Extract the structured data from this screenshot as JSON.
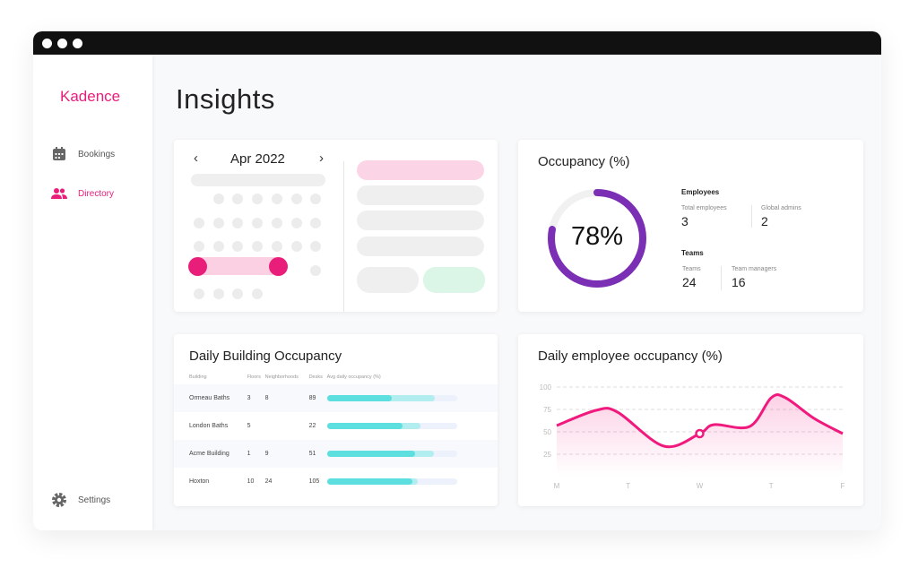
{
  "app": {
    "logo": "Kadence",
    "page_title": "Insights"
  },
  "sidebar": {
    "items": [
      {
        "label": "Bookings",
        "icon": "calendar-icon"
      },
      {
        "label": "Directory",
        "icon": "people-icon",
        "active": true
      },
      {
        "label": "Settings",
        "icon": "gear-icon"
      }
    ]
  },
  "calendar": {
    "month": "Apr 2022",
    "prev": "‹",
    "next": "›"
  },
  "occupancy": {
    "title": "Occupancy (%)",
    "value": 78,
    "value_label": "78%",
    "employees_heading": "Employees",
    "total_employees_label": "Total employees",
    "total_employees": "3",
    "global_admins_label": "Global admins",
    "global_admins": "2",
    "teams_heading": "Teams",
    "teams_label": "Teams",
    "teams": "24",
    "team_managers_label": "Team managers",
    "team_managers": "16"
  },
  "buildings": {
    "title": "Daily Building Occupancy",
    "columns": [
      "Building",
      "Floors",
      "Neighborhoods",
      "Desks",
      "Avg daily occupancy (%)"
    ],
    "rows": [
      {
        "name": "Ormeau Baths",
        "floors": "3",
        "neighborhoods": "8",
        "desks": "89",
        "occ": 50,
        "peak": 83
      },
      {
        "name": "London Baths",
        "floors": "5",
        "neighborhoods": "",
        "desks": "22",
        "occ": 58,
        "peak": 72
      },
      {
        "name": "Acme Building",
        "floors": "1",
        "neighborhoods": "9",
        "desks": "51",
        "occ": 68,
        "peak": 82
      },
      {
        "name": "Hoxton",
        "floors": "10",
        "neighborhoods": "24",
        "desks": "105",
        "occ": 66,
        "peak": 70
      }
    ]
  },
  "chart_data": {
    "type": "area",
    "title": "Daily employee occupancy (%)",
    "categories": [
      "M",
      "T",
      "W",
      "T",
      "F"
    ],
    "yticks": [
      "100",
      "75",
      "50",
      "25"
    ],
    "ylim": [
      0,
      100
    ],
    "grid": true,
    "x": [
      0,
      0.55,
      0.85,
      1.5,
      2,
      2.2,
      2.7,
      3,
      3.2,
      3.6,
      4
    ],
    "y": [
      57,
      74,
      72,
      34,
      48,
      58,
      56,
      88,
      88,
      65,
      48
    ],
    "highlight_x": 2,
    "color": "#f0197d"
  },
  "colors": {
    "accent": "#e91e7a",
    "ring": "#7b2fb5",
    "bar": "#5ddfe0"
  }
}
